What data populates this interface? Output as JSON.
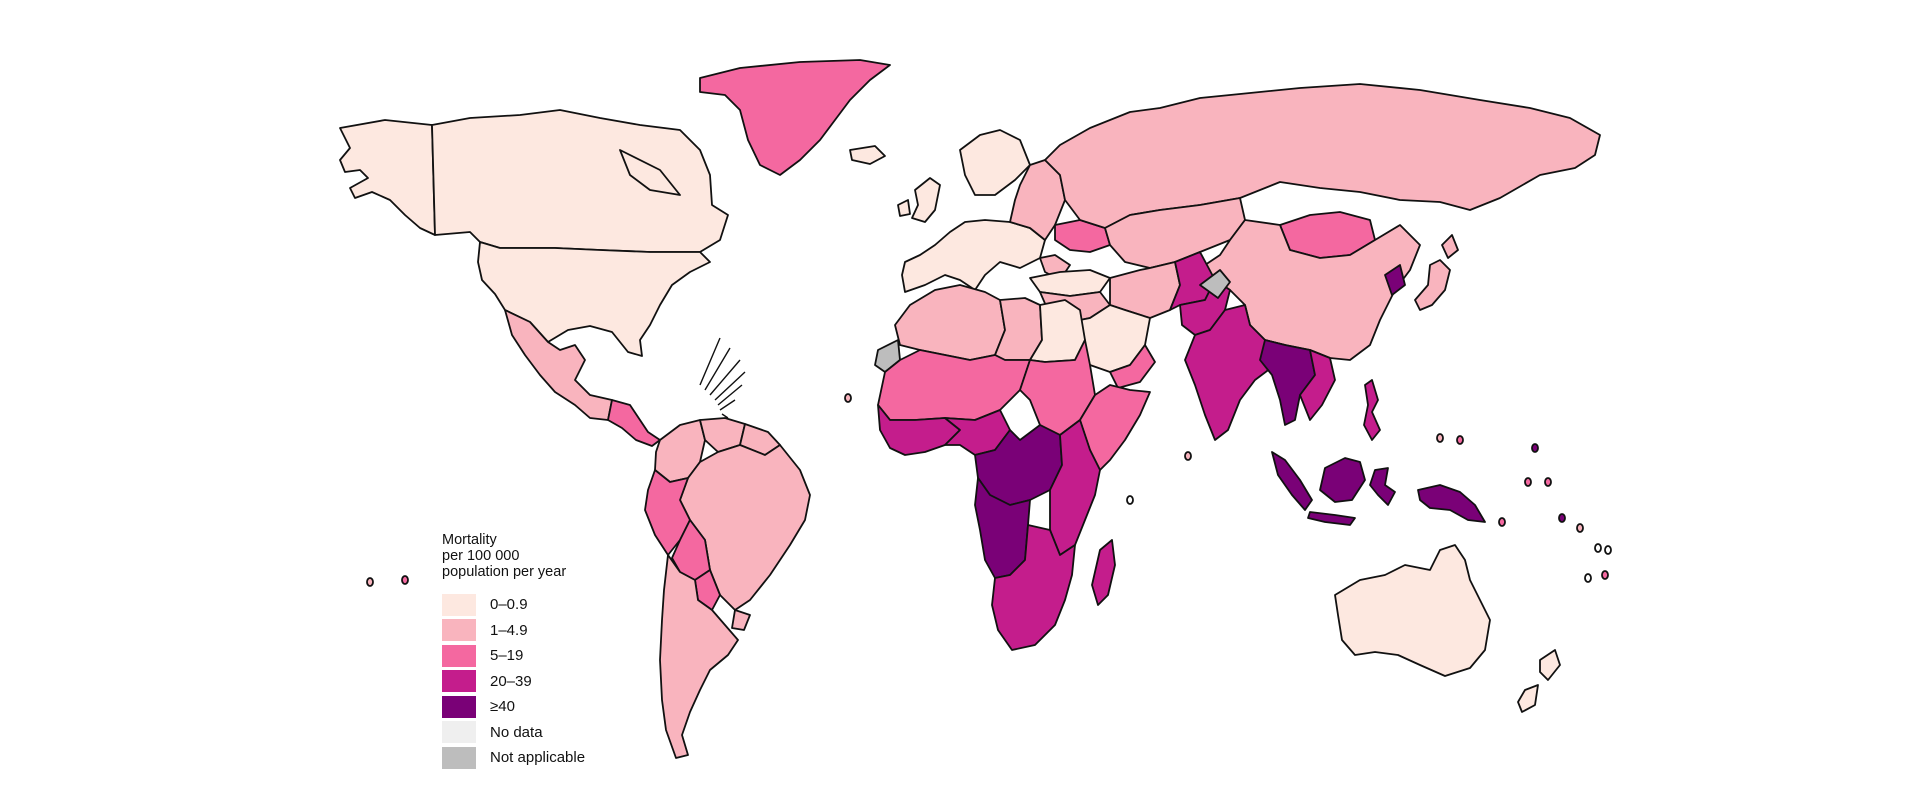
{
  "colors": {
    "c0": "#fde8e0",
    "c1": "#f9b4be",
    "c2": "#f468a0",
    "c3": "#c41d8c",
    "c4": "#7a0177",
    "nodata": "#efefef",
    "na": "#bdbdbd",
    "outline": "#111111"
  },
  "legend": {
    "title_lines": [
      "Mortality",
      "per 100 000",
      "population per year"
    ],
    "items": [
      {
        "label": "0–0.9",
        "color_key": "c0"
      },
      {
        "label": "1–4.9",
        "color_key": "c1"
      },
      {
        "label": "5–19",
        "color_key": "c2"
      },
      {
        "label": "20–39",
        "color_key": "c3"
      },
      {
        "label": "≥40",
        "color_key": "c4"
      },
      {
        "label": "No data",
        "color_key": "nodata"
      },
      {
        "label": "Not applicable",
        "color_key": "na"
      }
    ]
  },
  "regions": [
    {
      "name": "alaska",
      "cls": "c0"
    },
    {
      "name": "canada",
      "cls": "c0"
    },
    {
      "name": "usa",
      "cls": "c0"
    },
    {
      "name": "mexico",
      "cls": "c1"
    },
    {
      "name": "central-america",
      "cls": "c2"
    },
    {
      "name": "greenland",
      "cls": "c2"
    },
    {
      "name": "iceland",
      "cls": "c0"
    },
    {
      "name": "colombia",
      "cls": "c1"
    },
    {
      "name": "venezuela",
      "cls": "c1"
    },
    {
      "name": "guianas",
      "cls": "c1"
    },
    {
      "name": "brazil",
      "cls": "c1"
    },
    {
      "name": "peru",
      "cls": "c2"
    },
    {
      "name": "bolivia",
      "cls": "c2"
    },
    {
      "name": "paraguay",
      "cls": "c2"
    },
    {
      "name": "argentina-chile",
      "cls": "c1"
    },
    {
      "name": "uruguay",
      "cls": "c1"
    },
    {
      "name": "western-europe",
      "cls": "c0"
    },
    {
      "name": "uk-ireland",
      "cls": "c0"
    },
    {
      "name": "eastern-europe",
      "cls": "c1"
    },
    {
      "name": "ukraine",
      "cls": "c2"
    },
    {
      "name": "russia",
      "cls": "c1"
    },
    {
      "name": "turkey",
      "cls": "c0"
    },
    {
      "name": "central-asia",
      "cls": "c1"
    },
    {
      "name": "mongolia",
      "cls": "c2"
    },
    {
      "name": "china",
      "cls": "c1"
    },
    {
      "name": "north-korea",
      "cls": "c4"
    },
    {
      "name": "japan",
      "cls": "c1"
    },
    {
      "name": "middle-east",
      "cls": "c1"
    },
    {
      "name": "saudi-arabia",
      "cls": "c0"
    },
    {
      "name": "yemen",
      "cls": "c2"
    },
    {
      "name": "iran",
      "cls": "c1"
    },
    {
      "name": "afghanistan",
      "cls": "c3"
    },
    {
      "name": "pakistan",
      "cls": "c3"
    },
    {
      "name": "kashmir",
      "cls": "na"
    },
    {
      "name": "india",
      "cls": "c3"
    },
    {
      "name": "bangladesh-myanmar",
      "cls": "c4"
    },
    {
      "name": "indochina",
      "cls": "c3"
    },
    {
      "name": "north-africa",
      "cls": "c1"
    },
    {
      "name": "western-sahara",
      "cls": "na"
    },
    {
      "name": "egypt",
      "cls": "c0"
    },
    {
      "name": "libya",
      "cls": "c1"
    },
    {
      "name": "sahel",
      "cls": "c2"
    },
    {
      "name": "west-africa",
      "cls": "c3"
    },
    {
      "name": "nigeria",
      "cls": "c3"
    },
    {
      "name": "central-africa",
      "cls": "c4"
    },
    {
      "name": "sudan",
      "cls": "c2"
    },
    {
      "name": "horn-of-africa",
      "cls": "c2"
    },
    {
      "name": "east-africa",
      "cls": "c3"
    },
    {
      "name": "angola",
      "cls": "c4"
    },
    {
      "name": "southern-africa",
      "cls": "c3"
    },
    {
      "name": "madagascar",
      "cls": "c3"
    },
    {
      "name": "sumatra",
      "cls": "c4"
    },
    {
      "name": "borneo",
      "cls": "c4"
    },
    {
      "name": "java",
      "cls": "c4"
    },
    {
      "name": "sulawesi",
      "cls": "c4"
    },
    {
      "name": "papua",
      "cls": "c4"
    },
    {
      "name": "philippines",
      "cls": "c3"
    },
    {
      "name": "australia",
      "cls": "c0"
    },
    {
      "name": "new-zealand",
      "cls": "c0"
    }
  ]
}
